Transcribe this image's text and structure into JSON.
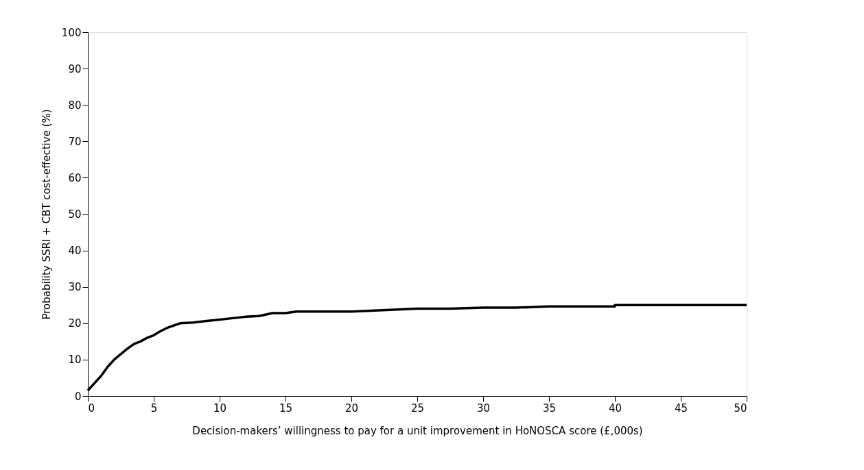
{
  "chart_data": {
    "type": "line",
    "xlabel": "Decision-makers’ willingness to pay for a unit improvement in HoNOSCA score (£,000s)",
    "ylabel": "Probability SSRI + CBT cost-effective (%)",
    "x": [
      0,
      0.5,
      1,
      1.5,
      2,
      2.5,
      3,
      3.5,
      4,
      4.5,
      5,
      5.5,
      6,
      7,
      8,
      9,
      10,
      11,
      12,
      13,
      14,
      15,
      15.8,
      20,
      25,
      27.5,
      30,
      32.5,
      35,
      40,
      40,
      50
    ],
    "series": [
      {
        "color": "#000000",
        "values": [
          1.5,
          3.5,
          5.5,
          8,
          10,
          11.5,
          13,
          14.3,
          15,
          16,
          16.7,
          17.8,
          18.7,
          20,
          20.2,
          20.6,
          21,
          21.4,
          21.8,
          22,
          22.8,
          22.8,
          23.2,
          23.2,
          24,
          24,
          24.3,
          24.3,
          24.6,
          24.6,
          25,
          25
        ]
      }
    ],
    "xlim": [
      0,
      50
    ],
    "xticks": [
      0,
      5,
      10,
      15,
      20,
      25,
      30,
      35,
      40,
      45,
      50
    ],
    "ylim": [
      0,
      100
    ],
    "yticks": [
      0,
      10,
      20,
      30,
      40,
      50,
      60,
      70,
      80,
      90,
      100
    ],
    "grid": false,
    "legend": false,
    "marker": "none",
    "line_style": "solid"
  }
}
